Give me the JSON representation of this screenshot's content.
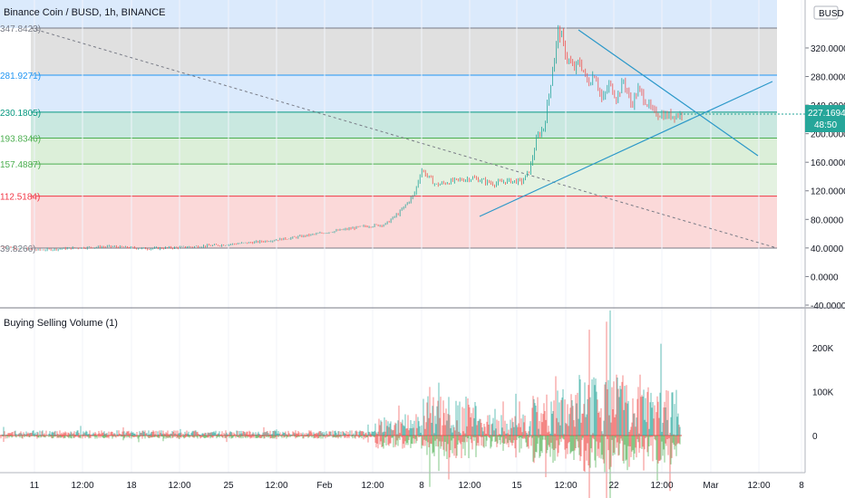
{
  "header": {
    "title": "Binance Coin / BUSD, 1h, BINANCE",
    "currency": "BUSD"
  },
  "last_price": {
    "value": "227.1694",
    "countdown": "48:50",
    "color": "#26a69a"
  },
  "colors": {
    "up": "#26a69a",
    "down": "#ef5350",
    "grid": "#e0e3eb",
    "trend_line": "#2b98c9"
  },
  "chart_data": [
    {
      "type": "candlestick",
      "title": "Binance Coin / BUSD, 1h, BINANCE",
      "ylim": [
        -40,
        360
      ],
      "y_ticks": [
        "320.0000",
        "280.0000",
        "240.0000",
        "200.0000",
        "160.0000",
        "120.0000",
        "80.0000",
        "40.0000",
        "0.0000",
        "-40.0000"
      ],
      "y_tick_values": [
        320,
        280,
        240,
        200,
        160,
        120,
        80,
        40,
        0,
        -40
      ],
      "x_ticks": [
        "11",
        "12:00",
        "18",
        "12:00",
        "25",
        "12:00",
        "Feb",
        "12:00",
        "8",
        "12:00",
        "15",
        "12:00",
        "22",
        "12:00",
        "Mar",
        "12:00",
        "8"
      ],
      "fib_levels": [
        {
          "label": "347.8423)",
          "value": 347.8423,
          "color": "#787b86",
          "fill": "#e0e0e0"
        },
        {
          "label": "281.9271)",
          "value": 281.9271,
          "color": "#2196f3",
          "fill": "#dbeafc"
        },
        {
          "label": "230.1805)",
          "value": 230.1805,
          "color": "#089981",
          "fill": "#c9e8e0"
        },
        {
          "label": "193.8346)",
          "value": 193.8346,
          "color": "#4caf50",
          "fill": "#dcefd9"
        },
        {
          "label": "157.4887)",
          "value": 157.4887,
          "color": "#4caf50",
          "fill": "#e4f2e1"
        },
        {
          "label": "112.5184)",
          "value": 112.5184,
          "color": "#f23645",
          "fill": "#fbd9d9"
        },
        {
          "label": "39.8266)",
          "value": 39.8266,
          "color": "#787b86",
          "fill": null
        }
      ],
      "price_path": [
        [
          0,
          42
        ],
        [
          0.05,
          37
        ],
        [
          0.1,
          40
        ],
        [
          0.15,
          42
        ],
        [
          0.2,
          39
        ],
        [
          0.25,
          41
        ],
        [
          0.3,
          44
        ],
        [
          0.35,
          48
        ],
        [
          0.4,
          54
        ],
        [
          0.45,
          62
        ],
        [
          0.5,
          70
        ],
        [
          0.53,
          73
        ],
        [
          0.55,
          90
        ],
        [
          0.57,
          115
        ],
        [
          0.58,
          150
        ],
        [
          0.6,
          128
        ],
        [
          0.62,
          133
        ],
        [
          0.65,
          138
        ],
        [
          0.68,
          130
        ],
        [
          0.7,
          134
        ],
        [
          0.72,
          133
        ],
        [
          0.73,
          150
        ],
        [
          0.74,
          195
        ],
        [
          0.75,
          210
        ],
        [
          0.76,
          280
        ],
        [
          0.77,
          348
        ],
        [
          0.78,
          310
        ],
        [
          0.79,
          290
        ],
        [
          0.8,
          300
        ],
        [
          0.81,
          270
        ],
        [
          0.82,
          285
        ],
        [
          0.83,
          245
        ],
        [
          0.84,
          270
        ],
        [
          0.85,
          250
        ],
        [
          0.86,
          275
        ],
        [
          0.87,
          240
        ],
        [
          0.88,
          262
        ],
        [
          0.9,
          230
        ],
        [
          0.92,
          225
        ],
        [
          0.94,
          227
        ]
      ]
    },
    {
      "type": "bar",
      "title": "Buying Selling Volume (1)",
      "ylim": [
        -100000,
        300000
      ],
      "y_ticks": [
        "200K",
        "100K",
        "0"
      ],
      "y_tick_values": [
        200000,
        100000,
        0
      ]
    }
  ]
}
